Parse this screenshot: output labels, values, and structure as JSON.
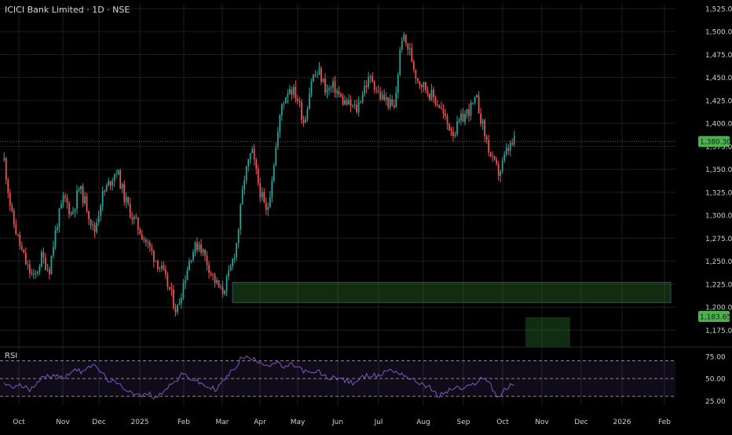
{
  "header": {
    "title": "ICICI Bank Limited · 1D · NSE"
  },
  "colors": {
    "background": "#000000",
    "grid": "#1e1e1e",
    "up": "#26a69a",
    "down": "#ef5350",
    "zone": "#1b5e20",
    "rsi_line": "#7e57c2",
    "price_badge": "#4caf50"
  },
  "rsi": {
    "label": "RSI",
    "upper_band": 70,
    "lower_band": 30,
    "mid": 50,
    "tick_labels": [
      "75.00",
      "50.00",
      "25.00"
    ]
  },
  "chart_data": {
    "type": "candlestick",
    "symbol": "ICICI Bank Limited",
    "timeframe": "1D",
    "exchange": "NSE",
    "y_axis": {
      "range": [
        1160,
        1530
      ],
      "tick_labels": [
        "1,525.00",
        "1,500.00",
        "1,475.00",
        "1,450.00",
        "1,425.00",
        "1,400.00",
        "1,375.00",
        "1,350.00",
        "1,325.00",
        "1,300.00",
        "1,275.00",
        "1,250.00",
        "1,225.00",
        "1,200.00",
        "1,175.00"
      ],
      "last_price": "1,380.30",
      "second_badge": "1,183.65"
    },
    "x_axis": {
      "tick_labels": [
        "Oct",
        "Nov",
        "Dec",
        "2025",
        "Feb",
        "Mar",
        "Apr",
        "May",
        "Jun",
        "Jul",
        "Aug",
        "Sep",
        "Oct",
        "Nov",
        "Dec",
        "2026",
        "Feb"
      ]
    },
    "price_path": [
      1360,
      1300,
      1270,
      1245,
      1230,
      1255,
      1240,
      1290,
      1320,
      1300,
      1330,
      1310,
      1280,
      1320,
      1335,
      1350,
      1320,
      1300,
      1285,
      1270,
      1255,
      1240,
      1220,
      1195,
      1230,
      1260,
      1270,
      1250,
      1230,
      1215,
      1235,
      1270,
      1340,
      1370,
      1330,
      1300,
      1360,
      1420,
      1440,
      1430,
      1400,
      1450,
      1455,
      1435,
      1440,
      1425,
      1420,
      1415,
      1440,
      1450,
      1430,
      1425,
      1415,
      1495,
      1480,
      1450,
      1440,
      1430,
      1420,
      1400,
      1390,
      1405,
      1415,
      1425,
      1390,
      1360,
      1345,
      1370,
      1380
    ],
    "rsi_path": [
      45,
      40,
      42,
      38,
      48,
      52,
      55,
      50,
      60,
      58,
      65,
      62,
      50,
      45,
      40,
      35,
      30,
      33,
      28,
      40,
      45,
      55,
      50,
      45,
      40,
      38,
      50,
      60,
      75,
      72,
      70,
      65,
      68,
      62,
      66,
      60,
      55,
      58,
      50,
      52,
      48,
      45,
      50,
      55,
      52,
      60,
      58,
      55,
      48,
      45,
      40,
      30,
      35,
      40,
      38,
      42,
      50,
      48,
      28,
      38,
      45
    ],
    "zones": [
      {
        "name": "demand-zone-wide",
        "low": 1205,
        "high": 1227,
        "from": "Mar",
        "to_right_edge": true
      },
      {
        "name": "demand-zone-small",
        "low": 1155,
        "high": 1183,
        "from": "Nov",
        "to": "Dec"
      }
    ],
    "grid": true,
    "legend": "none"
  }
}
